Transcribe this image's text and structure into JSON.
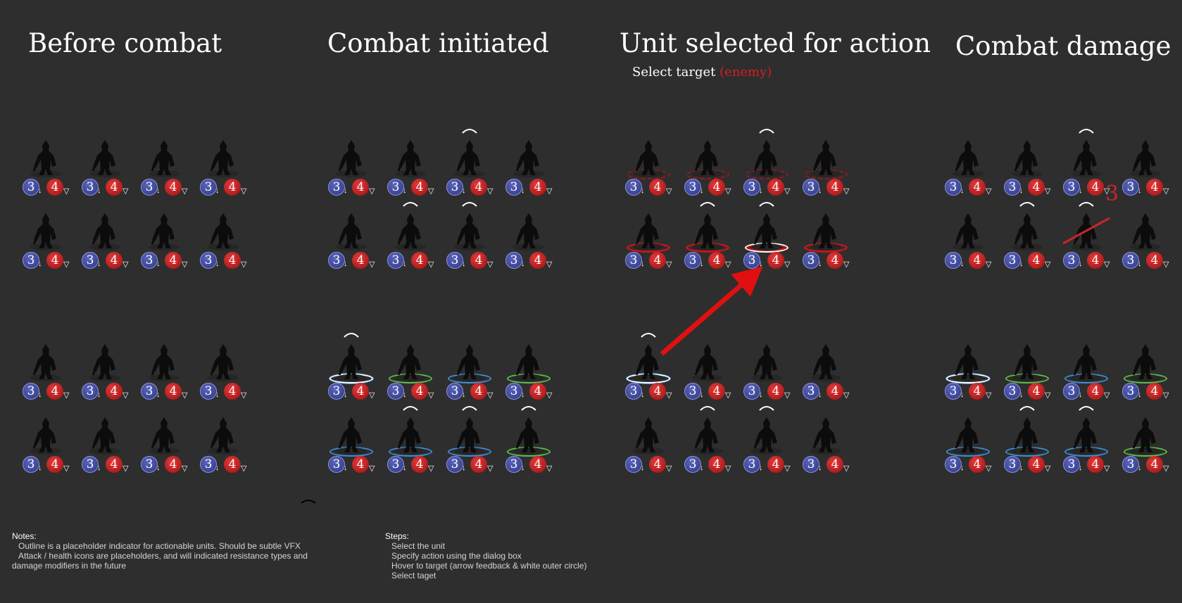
{
  "panels": [
    {
      "title": "Before combat"
    },
    {
      "title": "Combat initiated"
    },
    {
      "title": "Unit selected for action"
    },
    {
      "title": "Combat damage"
    }
  ],
  "subtitle": {
    "prefix": "Select target ",
    "highlight": "(enemy)"
  },
  "unit_stats": {
    "attack": "3",
    "health": "4",
    "attack_icon": "arrow-down-icon",
    "health_icon": "shield-icon"
  },
  "damage_number": "3",
  "notes": {
    "heading": "Notes:",
    "items": [
      "Outline is a placeholder indicator for actionable units. Should be subtle VFX",
      "Attack / health icons are placeholders, and will indicated resistance types and",
      "damage modifiers in the future"
    ]
  },
  "steps": {
    "heading": "Steps:",
    "items": [
      "Select the unit",
      "Specify action using the dialog box",
      "Hover to target (arrow feedback & white outer circle)",
      "Select taget"
    ]
  },
  "colors": {
    "background": "#2e2e2e",
    "attack": "#3a4396",
    "health": "#c51b1b",
    "ring_blue": "#3d8fd9",
    "ring_green": "#5cc14a",
    "ring_red": "#c7151a",
    "arrow": "#e01010"
  },
  "states": {
    "panel_1": {
      "enemy": [
        [
          "none",
          "none",
          "none",
          "none"
        ],
        [
          "none",
          "none",
          "none",
          "none"
        ]
      ],
      "player": [
        [
          "none",
          "none",
          "none",
          "none"
        ],
        [
          "none",
          "none",
          "none",
          "none"
        ]
      ],
      "enemy_caret": [
        [
          0,
          0,
          0,
          0
        ],
        [
          0,
          0,
          0,
          0
        ]
      ],
      "player_caret": [
        [
          0,
          0,
          0,
          0
        ],
        [
          0,
          0,
          0,
          0
        ]
      ]
    },
    "panel_2": {
      "enemy": [
        [
          "none",
          "none",
          "none",
          "none"
        ],
        [
          "none",
          "none",
          "none",
          "none"
        ]
      ],
      "player": [
        [
          "sel",
          "green",
          "blue",
          "green"
        ],
        [
          "blue",
          "blue",
          "blue",
          "green"
        ]
      ],
      "enemy_caret": [
        [
          0,
          0,
          1,
          0
        ],
        [
          0,
          1,
          1,
          0
        ]
      ],
      "player_caret": [
        [
          1,
          0,
          0,
          0
        ],
        [
          0,
          1,
          1,
          1
        ]
      ]
    },
    "panel_3": {
      "enemy": [
        [
          "reddash",
          "reddash",
          "reddash",
          "reddash"
        ],
        [
          "red",
          "red",
          "selred",
          "red"
        ]
      ],
      "player": [
        [
          "sel",
          "none",
          "none",
          "none"
        ],
        [
          "none",
          "none",
          "none",
          "none"
        ]
      ],
      "enemy_caret": [
        [
          0,
          0,
          1,
          0
        ],
        [
          0,
          1,
          1,
          0
        ]
      ],
      "player_caret": [
        [
          1,
          0,
          0,
          0
        ],
        [
          0,
          1,
          1,
          0
        ]
      ]
    },
    "panel_4": {
      "enemy": [
        [
          "none",
          "none",
          "none",
          "none"
        ],
        [
          "none",
          "none",
          "none",
          "none"
        ]
      ],
      "player": [
        [
          "sel",
          "green",
          "blue",
          "green"
        ],
        [
          "blue",
          "blue",
          "blue",
          "green"
        ]
      ],
      "enemy_caret": [
        [
          0,
          0,
          1,
          0
        ],
        [
          0,
          1,
          1,
          0
        ]
      ],
      "player_caret": [
        [
          0,
          0,
          0,
          0
        ],
        [
          0,
          1,
          1,
          0
        ]
      ]
    }
  }
}
